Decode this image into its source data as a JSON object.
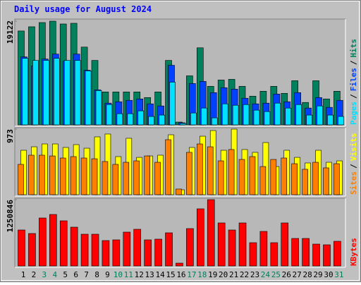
{
  "chart_data": [
    {
      "type": "bar",
      "title": "Daily usage for August 2024",
      "ylim": [
        0,
        19122
      ],
      "yticks": [
        19122
      ],
      "legend_separator": "/",
      "series": [
        {
          "name": "Hits",
          "color": "#00805c",
          "values": [
            17313,
            18088,
            18863,
            19122,
            18605,
            18734,
            14341,
            11886,
            6072,
            6072,
            6072,
            6072,
            5039,
            6072,
            11886,
            517,
            9044,
            14212,
            7106,
            8269,
            8398,
            7106,
            5297,
            6202,
            7106,
            5814,
            8140,
            4134,
            8140,
            4781,
            6202
          ]
        },
        {
          "name": "Files",
          "color": "#0040ff",
          "values": [
            12533,
            10853,
            12145,
            13049,
            11757,
            13049,
            10078,
            6460,
            4005,
            4264,
            4522,
            4781,
            3876,
            3488,
            10982,
            388,
            7623,
            8011,
            5943,
            6848,
            6589,
            4910,
            3876,
            4005,
            5685,
            4264,
            5943,
            3101,
            5039,
            3230,
            4522
          ]
        },
        {
          "name": "Pages",
          "color": "#00e0ff",
          "values": [
            12274,
            11886,
            11886,
            12274,
            11886,
            11886,
            9949,
            6331,
            3747,
            2067,
            2067,
            2584,
            1550,
            1809,
            7881,
            258,
            2196,
            3101,
            1292,
            3876,
            3618,
            3747,
            2713,
            2455,
            4005,
            3101,
            3747,
            1809,
            3488,
            1809,
            1550
          ]
        }
      ]
    },
    {
      "type": "bar",
      "ylim": [
        0,
        973
      ],
      "yticks": [
        973
      ],
      "legend_separator": "/",
      "series": [
        {
          "name": "Visits",
          "color": "#ffff00",
          "values": [
            659,
            711,
            753,
            753,
            701,
            743,
            690,
            858,
            900,
            565,
            837,
            554,
            575,
            586,
            889,
            73,
            701,
            868,
            952,
            659,
            973,
            670,
            628,
            774,
            418,
            659,
            554,
            471,
            659,
            481,
            502
          ]
        },
        {
          "name": "Sites",
          "color": "#ff8000",
          "values": [
            450,
            586,
            586,
            575,
            544,
            565,
            544,
            533,
            492,
            450,
            481,
            502,
            575,
            481,
            816,
            84,
            628,
            753,
            711,
            502,
            670,
            523,
            565,
            418,
            523,
            544,
            460,
            377,
            481,
            398,
            460
          ]
        }
      ]
    },
    {
      "type": "bar",
      "ylim": [
        0,
        1250846
      ],
      "yticks": [
        1250846
      ],
      "categories": [
        "1",
        "2",
        "3",
        "4",
        "5",
        "6",
        "7",
        "8",
        "9",
        "10",
        "11",
        "12",
        "13",
        "14",
        "15",
        "16",
        "17",
        "18",
        "19",
        "20",
        "21",
        "22",
        "23",
        "24",
        "25",
        "26",
        "27",
        "28",
        "29",
        "30",
        "31"
      ],
      "category_colors": [
        "#000000",
        "#000000",
        "#00805c",
        "#00805c",
        "#000000",
        "#000000",
        "#000000",
        "#000000",
        "#000000",
        "#00805c",
        "#00805c",
        "#000000",
        "#000000",
        "#000000",
        "#000000",
        "#000000",
        "#00805c",
        "#00805c",
        "#000000",
        "#000000",
        "#000000",
        "#000000",
        "#000000",
        "#00805c",
        "#00805c",
        "#000000",
        "#000000",
        "#000000",
        "#000000",
        "#000000",
        "#00805c"
      ],
      "series": [
        {
          "name": "KBytes",
          "color": "#ff0000",
          "values": [
            678650,
            612222,
            904828,
            971337,
            851715,
            731968,
            598812,
            598812,
            479050,
            492358,
            638734,
            691969,
            492358,
            505670,
            625426,
            53227,
            705285,
            1077960,
            1250846,
            811789,
            678650,
            811789,
            439146,
            652101,
            439146,
            811789,
            518976,
            518976,
            412530,
            399226,
            465751
          ]
        }
      ]
    }
  ]
}
